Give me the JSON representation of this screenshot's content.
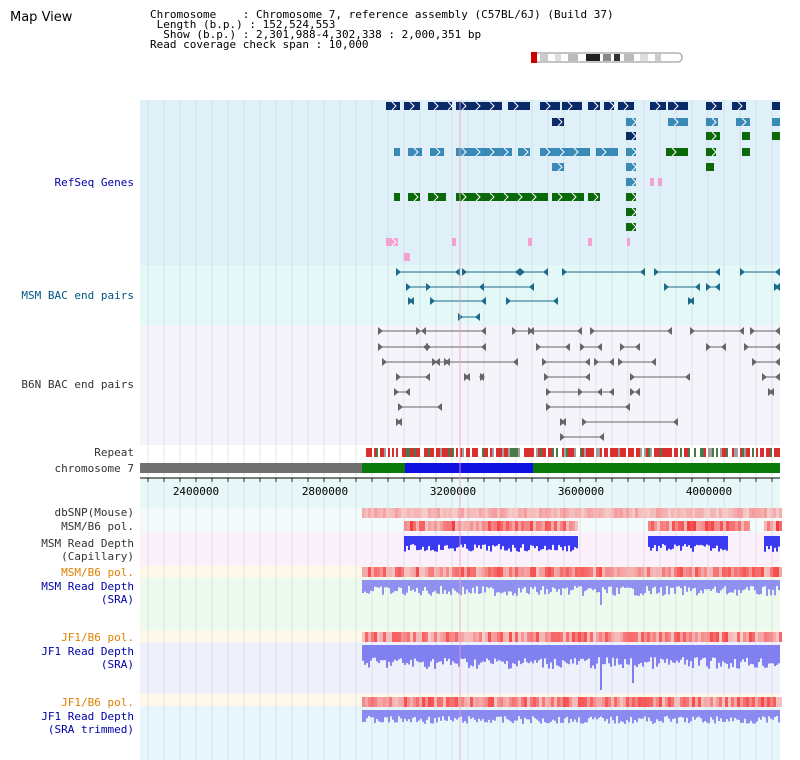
{
  "title": "Map View",
  "info": {
    "chromosome": "Chromosome    : Chromosome 7, reference assembly (C57BL/6J) (Build 37)",
    "length": " Length (b.p.) : 152,524,553",
    "show": "  Show (b.p.) : 2,301,988-4,302,338 : 2,000,351 bp",
    "read_coverage": "Read coverage check span : 10,000"
  },
  "tracks": {
    "refseq": "RefSeq Genes",
    "msm_bac": "MSM BAC end pairs",
    "b6n_bac": "B6N BAC end pairs",
    "repeat": "Repeat",
    "chromosome": "chromosome 7",
    "dbsnp": "dbSNP(Mouse)",
    "msm_b6_pol": "MSM/B6 pol.",
    "msm_depth_cap_1": "MSM Read Depth",
    "msm_depth_cap_2": "(Capillary)",
    "msm_b6_pol_2": "MSM/B6 pol.",
    "msm_depth_sra_1": "MSM Read Depth",
    "msm_depth_sra_2": "(SRA)",
    "jf1_b6_pol": "JF1/B6 pol.",
    "jf1_depth_sra_1": "JF1 Read Depth",
    "jf1_depth_sra_2": "(SRA)",
    "jf1_b6_pol_2": "JF1/B6 pol.",
    "jf1_depth_trim_1": "JF1 Read Depth",
    "jf1_depth_trim_2": "(SRA trimmed)"
  },
  "axis": {
    "ticks": [
      "2400000",
      "2800000",
      "3200000",
      "3600000",
      "4000000"
    ]
  },
  "colors": {
    "refseq_bg": "#dff0f8",
    "msm_bac_bg": "#e4f8f8",
    "b6n_bac_bg": "#f4f4fa",
    "gene_dark": "#0a2a6a",
    "gene_mid": "#3a8ab8",
    "gene_green": "#0a6a0a",
    "pink": "#f4a0d0",
    "bac_teal": "#1a6a8a",
    "bac_gray": "#666666",
    "chrom_gray": "#707070",
    "chrom_green": "#0a7a0a",
    "chrom_blue": "#1010e0",
    "snp_red": "#e03030",
    "depth_blue": "#3030f0"
  }
}
